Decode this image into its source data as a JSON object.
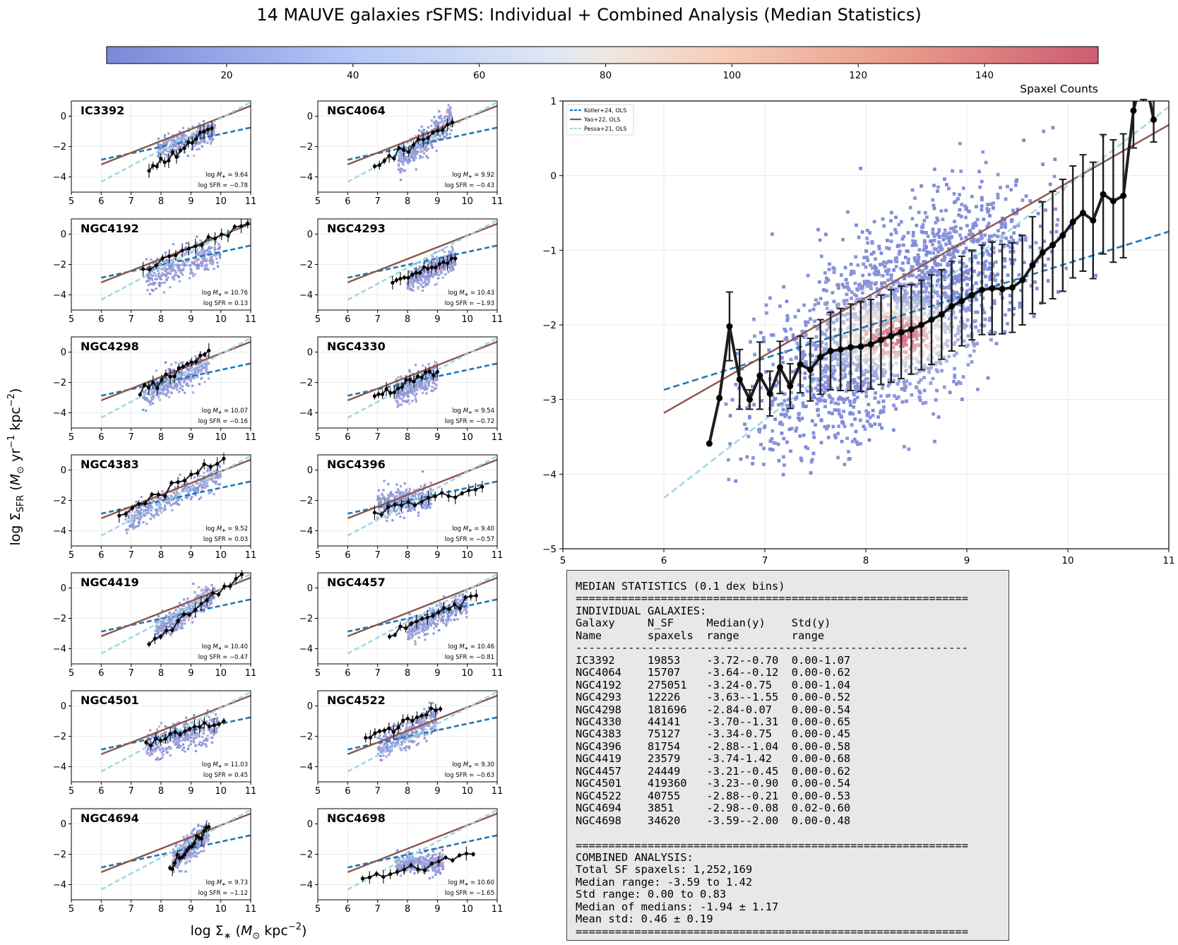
{
  "figure": {
    "title": "14 MAUVE galaxies rSFMS: Individual + Combined Analysis (Median Statistics)",
    "colorbar_label": "Spaxel Counts",
    "colorbar_ticks": [
      "20",
      "40",
      "60",
      "80",
      "100",
      "120",
      "140"
    ],
    "colorbar_range": [
      1,
      158
    ],
    "xlabel": "log Σ_* (M_⊙ kpc^-2)",
    "ylabel": "log Σ_SFR (M_⊙ yr^-1 kpc^-2)",
    "xlabel_parts": {
      "sym": "log Σ",
      "sub": "∗",
      "open": " (",
      "m": "M",
      "msub": "⊙",
      "unit": " kpc",
      "exp": "−2",
      "close": ")"
    },
    "ylabel_parts": {
      "sym": "log Σ",
      "sub": "SFR",
      "open": " (",
      "m": "M",
      "msub": "⊙",
      "unit1": " yr",
      "exp1": "−1",
      "unit2": " kpc",
      "exp2": "−2",
      "close": ")"
    }
  },
  "colors": {
    "koller": "#1f77b4",
    "yao": "#8c564b",
    "pessa": "#9fd8e4",
    "median": "#1e1e1e",
    "cmap_low": "#7b88d8",
    "cmap_mid": "#ece9e4",
    "cmap_high": "#cd5c72"
  },
  "legend": [
    {
      "label": "Koller+24, OLS",
      "style": "dashed",
      "color": "#1f77b4"
    },
    {
      "label": "Yao+22, OLS",
      "style": "solid",
      "color": "#8c564b"
    },
    {
      "label": "Pessa+21, OLS",
      "style": "dashed",
      "color": "#9fd8e4"
    }
  ],
  "panels": [
    {
      "name": "IC3392",
      "logM": "9.64",
      "logSFR": "−0.78"
    },
    {
      "name": "NGC4064",
      "logM": "9.92",
      "logSFR": "−0.43"
    },
    {
      "name": "NGC4192",
      "logM": "10.76",
      "logSFR": "0.13"
    },
    {
      "name": "NGC4293",
      "logM": "10.43",
      "logSFR": "−1.93"
    },
    {
      "name": "NGC4298",
      "logM": "10.07",
      "logSFR": "−0.16"
    },
    {
      "name": "NGC4330",
      "logM": "9.54",
      "logSFR": "−0.72"
    },
    {
      "name": "NGC4383",
      "logM": "9.52",
      "logSFR": "0.03"
    },
    {
      "name": "NGC4396",
      "logM": "9.40",
      "logSFR": "−0.57"
    },
    {
      "name": "NGC4419",
      "logM": "10.40",
      "logSFR": "−0.47"
    },
    {
      "name": "NGC4457",
      "logM": "10.46",
      "logSFR": "−0.81"
    },
    {
      "name": "NGC4501",
      "logM": "11.03",
      "logSFR": "0.45"
    },
    {
      "name": "NGC4522",
      "logM": "9.30",
      "logSFR": "−0.63"
    },
    {
      "name": "NGC4694",
      "logM": "9.73",
      "logSFR": "−1.12"
    },
    {
      "name": "NGC4698",
      "logM": "10.60",
      "logSFR": "−1.65"
    }
  ],
  "chart_data": [
    {
      "type": "scatter",
      "title": "",
      "description_role": "combined hexbin of all galaxies with running median",
      "xlim": [
        5,
        11
      ],
      "ylim": [
        -5,
        1
      ],
      "xticks": [
        5,
        6,
        7,
        8,
        9,
        10,
        11
      ],
      "yticks": [
        -5,
        -4,
        -3,
        -2,
        -1,
        0,
        1
      ],
      "grid": true,
      "legend_placement": "top-left",
      "cloud": {
        "x_range": [
          6.6,
          10.4
        ],
        "y_range": [
          -4.1,
          0.9
        ],
        "peak": [
          8.3,
          -2.15
        ]
      },
      "reference_lines": [
        {
          "name": "Koller+24, OLS",
          "x": [
            6,
            11
          ],
          "y": [
            -2.87,
            -0.75
          ]
        },
        {
          "name": "Yao+22, OLS",
          "x": [
            6,
            11
          ],
          "y": [
            -3.18,
            0.68
          ]
        },
        {
          "name": "Pessa+21, OLS",
          "x": [
            6,
            11
          ],
          "y": [
            -4.32,
            0.92
          ]
        }
      ],
      "median": {
        "x": [
          6.45,
          6.55,
          6.65,
          6.75,
          6.85,
          6.95,
          7.05,
          7.15,
          7.25,
          7.35,
          7.45,
          7.55,
          7.65,
          7.75,
          7.85,
          7.95,
          8.05,
          8.15,
          8.25,
          8.35,
          8.45,
          8.55,
          8.65,
          8.75,
          8.85,
          8.95,
          9.05,
          9.15,
          9.25,
          9.35,
          9.45,
          9.55,
          9.65,
          9.75,
          9.85,
          9.95,
          10.05,
          10.15,
          10.25,
          10.35,
          10.45,
          10.55,
          10.65,
          10.75,
          10.85
        ],
        "y": [
          -3.59,
          -2.98,
          -2.02,
          -2.73,
          -3.0,
          -2.68,
          -2.92,
          -2.57,
          -2.82,
          -2.53,
          -2.6,
          -2.43,
          -2.35,
          -2.33,
          -2.3,
          -2.29,
          -2.26,
          -2.2,
          -2.15,
          -2.1,
          -2.06,
          -2.0,
          -1.93,
          -1.86,
          -1.75,
          -1.68,
          -1.6,
          -1.53,
          -1.51,
          -1.52,
          -1.5,
          -1.4,
          -1.2,
          -1.03,
          -0.93,
          -0.8,
          -0.62,
          -0.5,
          -0.6,
          -0.25,
          -0.34,
          -0.27,
          0.87,
          1.42,
          0.75
        ],
        "err": [
          0,
          0,
          0.46,
          0.4,
          0.13,
          0.45,
          0.3,
          0.35,
          0.3,
          0.38,
          0.42,
          0.5,
          0.52,
          0.55,
          0.58,
          0.6,
          0.6,
          0.6,
          0.62,
          0.62,
          0.6,
          0.6,
          0.6,
          0.6,
          0.6,
          0.6,
          0.6,
          0.6,
          0.62,
          0.6,
          0.6,
          0.6,
          0.65,
          0.68,
          0.72,
          0.75,
          0.75,
          0.78,
          0.78,
          0.8,
          0.82,
          0.83,
          0.5,
          0.4,
          0.3
        ]
      }
    }
  ],
  "stats": {
    "header": "MEDIAN STATISTICS (0.1 dex bins)",
    "separator": "============================================================",
    "section_individual": "INDIVIDUAL GALAXIES:",
    "col_header_1": "Galaxy     N_SF     Median(y)    Std(y)",
    "col_header_2": "Name       spaxels  range        range",
    "dash_line": "------------------------------------------------------------",
    "rows": [
      "IC3392     19853    -3.72--0.70  0.00-1.07",
      "NGC4064    15707    -3.64--0.12  0.00-0.62",
      "NGC4192    275051   -3.24-0.75   0.00-1.04",
      "NGC4293    12226    -3.63--1.55  0.00-0.52",
      "NGC4298    181696   -2.84-0.07   0.00-0.54",
      "NGC4330    44141    -3.70--1.31  0.00-0.65",
      "NGC4383    75127    -3.34-0.75   0.00-0.45",
      "NGC4396    81754    -2.88--1.04  0.00-0.58",
      "NGC4419    23579    -3.74-1.42   0.00-0.68",
      "NGC4457    24449    -3.21--0.45  0.00-0.62",
      "NGC4501    419360   -3.23--0.90  0.00-0.54",
      "NGC4522    40755    -2.88--0.21  0.00-0.53",
      "NGC4694    3851     -2.98--0.08  0.02-0.60",
      "NGC4698    34620    -3.59--2.00  0.00-0.48"
    ],
    "section_combined": "COMBINED ANALYSIS:",
    "combined": [
      "Total SF spaxels: 1,252,169",
      "Median range: -3.59 to 1.42",
      "Std range: 0.00 to 0.83",
      "Median of medians: -1.94 ± 1.17",
      "Mean std: 0.46 ± 0.19"
    ]
  }
}
